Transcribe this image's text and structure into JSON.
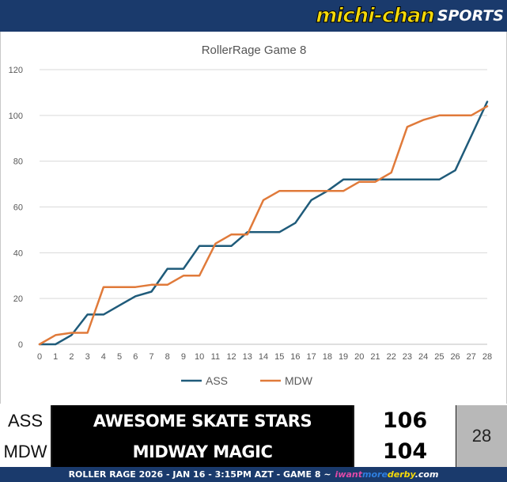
{
  "header": {
    "brand": "michi-chan",
    "brand_suffix": "SPORTS"
  },
  "colors": {
    "header": "#1a3a6c",
    "series_ass": "#1f5b7a",
    "series_mdw": "#e07a3a",
    "grid": "#d9d9d9"
  },
  "chart_data": {
    "type": "line",
    "title": "RollerRage Game 8",
    "xlabel": "",
    "ylabel": "",
    "ylim": [
      0,
      120
    ],
    "yticks": [
      0,
      20,
      40,
      60,
      80,
      100,
      120
    ],
    "x": [
      0,
      1,
      2,
      3,
      4,
      5,
      6,
      7,
      8,
      9,
      10,
      11,
      12,
      13,
      14,
      15,
      16,
      17,
      18,
      19,
      20,
      21,
      22,
      23,
      24,
      25,
      26,
      27,
      28
    ],
    "grid": true,
    "legend": "bottom",
    "series": [
      {
        "name": "ASS",
        "color": "#1f5b7a",
        "values": [
          0,
          0,
          4,
          13,
          13,
          17,
          21,
          23,
          33,
          33,
          43,
          43,
          43,
          49,
          49,
          49,
          53,
          63,
          67,
          72,
          72,
          72,
          72,
          72,
          72,
          72,
          76,
          91,
          106
        ]
      },
      {
        "name": "MDW",
        "color": "#e07a3a",
        "values": [
          0,
          4,
          5,
          5,
          25,
          25,
          25,
          26,
          26,
          30,
          30,
          44,
          48,
          48,
          63,
          67,
          67,
          67,
          67,
          67,
          71,
          71,
          75,
          95,
          98,
          100,
          100,
          100,
          104
        ]
      }
    ]
  },
  "scoreboard": {
    "teams": [
      {
        "code": "ASS",
        "name": "AWESOME SKATE STARS",
        "score": "106"
      },
      {
        "code": "MDW",
        "name": "MIDWAY MAGIC",
        "score": "104"
      }
    ],
    "period": "28"
  },
  "footer": {
    "text": "ROLLER RAGE 2026 - JAN 16 - 3:15PM AZT - GAME 8 ~",
    "site_part1": "iwant",
    "site_part2": "more",
    "site_part3": "derby",
    "site_part4": ".com"
  }
}
